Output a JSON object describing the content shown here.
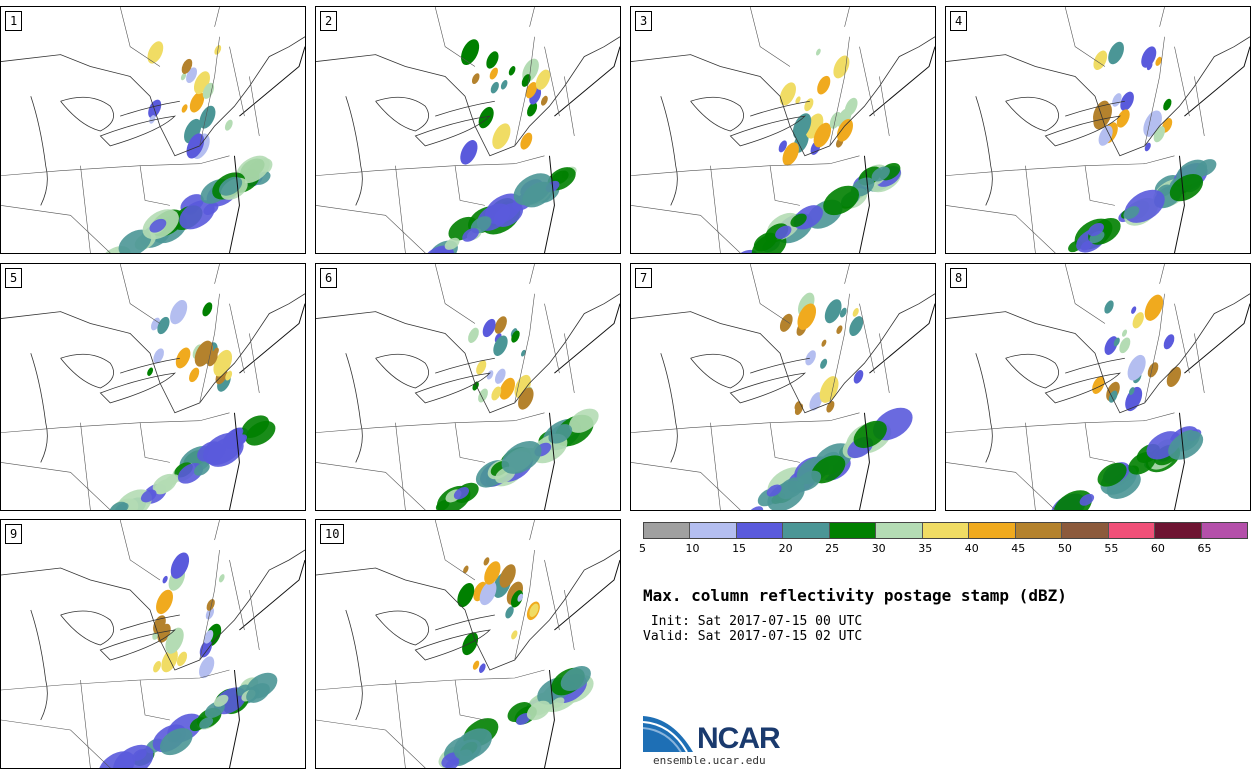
{
  "panels": [
    {
      "num": "1"
    },
    {
      "num": "2"
    },
    {
      "num": "3"
    },
    {
      "num": "4"
    },
    {
      "num": "5"
    },
    {
      "num": "6"
    },
    {
      "num": "7"
    },
    {
      "num": "8"
    },
    {
      "num": "9"
    },
    {
      "num": "10"
    }
  ],
  "colorbar": {
    "colors": [
      "#a0a0a0",
      "#b4bef0",
      "#5a5adc",
      "#4b9696",
      "#008000",
      "#b4dcb4",
      "#f0dc64",
      "#f0aa1e",
      "#b4822d",
      "#8c5a3c",
      "#f05078",
      "#6e1432",
      "#b450aa"
    ],
    "labels": [
      "5",
      "10",
      "15",
      "20",
      "25",
      "30",
      "35",
      "40",
      "45",
      "50",
      "55",
      "60",
      "65"
    ]
  },
  "title": "Max. column reflectivity postage stamp (dBZ)",
  "init_line": " Init: Sat 2017-07-15 00 UTC",
  "valid_line": "Valid: Sat 2017-07-15 02 UTC",
  "logo_text": "NCAR",
  "site": "ensemble.ucar.edu"
}
